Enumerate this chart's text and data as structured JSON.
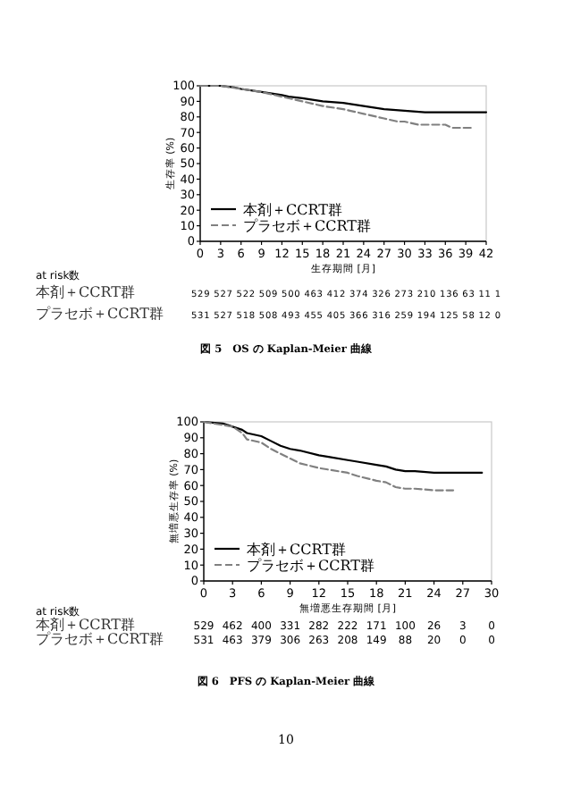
{
  "chart_data": [
    {
      "type": "line",
      "title": "図 5　OS の Kaplan-Meier 曲線",
      "xlabel": "生存期間 [月]",
      "ylabel": "生存率 (%)",
      "xlim": [
        0,
        42
      ],
      "ylim": [
        0,
        100
      ],
      "xticks": [
        0,
        3,
        6,
        9,
        12,
        15,
        18,
        21,
        24,
        27,
        30,
        33,
        36,
        39,
        42
      ],
      "yticks": [
        0,
        10,
        20,
        30,
        40,
        50,
        60,
        70,
        80,
        90,
        100
      ],
      "legend": "bottom left",
      "grid": false,
      "series": [
        {
          "name": "本剤＋CCRT群",
          "color": "#000000",
          "line_style": "solid",
          "x": [
            0,
            3,
            5,
            6,
            9,
            12,
            13,
            15,
            18,
            21,
            24,
            27,
            30,
            33,
            36,
            39,
            42
          ],
          "values": [
            100,
            100,
            99,
            98,
            96,
            94,
            93,
            92,
            90,
            89,
            87,
            85,
            84,
            83,
            83,
            83,
            83
          ]
        },
        {
          "name": "プラセボ＋CCRT群",
          "color": "#808080",
          "line_style": "dashed",
          "x": [
            0,
            3,
            6,
            9,
            12,
            15,
            18,
            21,
            24,
            27,
            29,
            30,
            32,
            36,
            37,
            39,
            40
          ],
          "values": [
            100,
            100,
            98,
            96,
            93,
            90,
            87,
            85,
            82,
            79,
            77,
            77,
            75,
            75,
            73,
            73,
            73
          ]
        }
      ],
      "annotations": [
        "at risk数",
        "本剤＋CCRT群",
        "529 527 522 509 500 463 412 374 326 273 210 136 63 11 1",
        "プラセボ＋CCRT群",
        "531 527 518 508 493 455 405 366 316 259 194 125 58 12 0"
      ]
    },
    {
      "type": "line",
      "title": "図 6　PFS の Kaplan-Meier 曲線",
      "xlabel": "無増悪生存期間 [月]",
      "ylabel": "無増悪生存率 (%)",
      "xlim": [
        0,
        30
      ],
      "ylim": [
        0,
        100
      ],
      "xticks": [
        0,
        3,
        6,
        9,
        12,
        15,
        18,
        21,
        24,
        27,
        30
      ],
      "yticks": [
        0,
        10,
        20,
        30,
        40,
        50,
        60,
        70,
        80,
        90,
        100
      ],
      "legend": "bottom left",
      "grid": false,
      "series": [
        {
          "name": "本剤＋CCRT群",
          "color": "#000000",
          "line_style": "solid",
          "x": [
            0,
            2,
            3,
            4,
            4.5,
            6,
            7,
            8,
            9,
            10,
            12,
            13,
            15,
            16,
            18,
            19,
            20,
            21,
            22,
            24,
            26,
            29
          ],
          "values": [
            100,
            99,
            97,
            95,
            93,
            91,
            88,
            85,
            83,
            82,
            79,
            78,
            76,
            75,
            73,
            72,
            70,
            69,
            69,
            68,
            68,
            68
          ]
        },
        {
          "name": "プラセボ＋CCRT群",
          "color": "#808080",
          "line_style": "dashed",
          "x": [
            0,
            3,
            4,
            4.5,
            6,
            7,
            8,
            9,
            10,
            12,
            13,
            15,
            16,
            18,
            19,
            20,
            21,
            22,
            24,
            26
          ],
          "values": [
            100,
            97,
            93,
            89,
            87,
            83,
            80,
            77,
            74,
            71,
            70,
            68,
            66,
            63,
            62,
            59,
            58,
            58,
            57,
            57
          ]
        }
      ],
      "annotations": [
        "at risk数",
        "本剤＋CCRT群",
        "529 462 400 331 282 222 171 100 26 3 0",
        "プラセボ＋CCRT群",
        "531 463 379 306 263 208 149 88 20 0 0",
        "10"
      ]
    }
  ]
}
